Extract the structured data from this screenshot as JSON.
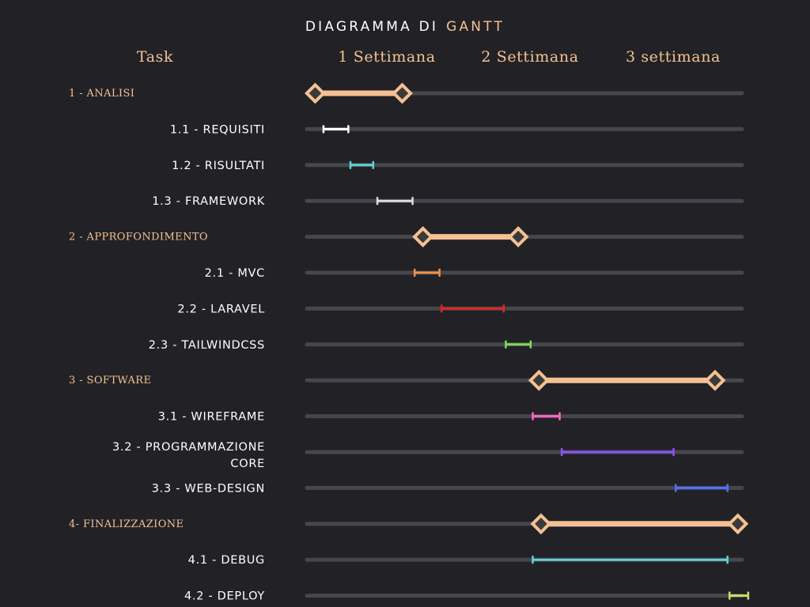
{
  "title_main": "DIAGRAMMA DI",
  "title_accent": "GANTT",
  "colors": {
    "background": "#222226",
    "accent": "#f4c193",
    "track": "#46464c",
    "label": "#ffffff"
  },
  "chart_data": {
    "type": "gantt",
    "title": "DIAGRAMMA DI GANTT",
    "task_header": "Task",
    "periods": [
      "1 Settimana",
      "2 Settimana",
      "3 settimana"
    ],
    "x_unit": "days",
    "xlim": [
      0,
      21
    ],
    "grid": false,
    "rows": [
      {
        "label": "1 - ANALISI",
        "kind": "group",
        "start": 0.4,
        "end": 4.6,
        "color": "#f4c193"
      },
      {
        "label": "1.1 - REQUISITI",
        "kind": "task",
        "start": 0.8,
        "end": 2.0,
        "color": "#ffffff"
      },
      {
        "label": "1.2 - RISULTATI",
        "kind": "task",
        "start": 2.1,
        "end": 3.2,
        "color": "#5fd3d8"
      },
      {
        "label": "1.3 - FRAMEWORK",
        "kind": "task",
        "start": 3.4,
        "end": 5.1,
        "color": "#dddddd"
      },
      {
        "label": "2 - APPROFONDIMENTO",
        "kind": "group",
        "start": 5.6,
        "end": 10.2,
        "color": "#f4c193"
      },
      {
        "label": "2.1 - MVC",
        "kind": "task",
        "start": 5.2,
        "end": 6.4,
        "color": "#f2914a"
      },
      {
        "label": "2.2 - LARAVEL",
        "kind": "task",
        "start": 6.5,
        "end": 9.5,
        "color": "#dc2626"
      },
      {
        "label": "2.3 - TAILWINDCSS",
        "kind": "task",
        "start": 9.6,
        "end": 10.8,
        "color": "#7ed957"
      },
      {
        "label": "3 - SOFTWARE",
        "kind": "group",
        "start": 11.2,
        "end": 19.7,
        "color": "#f4c193"
      },
      {
        "label": "3.1 - WIREFRAME",
        "kind": "task",
        "start": 10.9,
        "end": 12.2,
        "color": "#ff66c4"
      },
      {
        "label": "3.2 - PROGRAMMAZIONE CORE",
        "label_lines": [
          "3.2 - PROGRAMMAZIONE",
          "CORE"
        ],
        "kind": "task",
        "start": 12.3,
        "end": 17.7,
        "color": "#8c52ff"
      },
      {
        "label": "3.3 - WEB-DESIGN",
        "kind": "task",
        "start": 17.8,
        "end": 20.3,
        "color": "#5271ff"
      },
      {
        "label": "4- FINALIZZAZIONE",
        "kind": "group",
        "start": 11.3,
        "end": 20.8,
        "color": "#f4c193"
      },
      {
        "label": "4.1 - DEBUG",
        "kind": "task",
        "start": 10.9,
        "end": 20.3,
        "color": "#5fd3d8"
      },
      {
        "label": "4.2 - DEPLOY",
        "kind": "task",
        "start": 20.4,
        "end": 21.3,
        "color": "#c9e265"
      }
    ]
  }
}
